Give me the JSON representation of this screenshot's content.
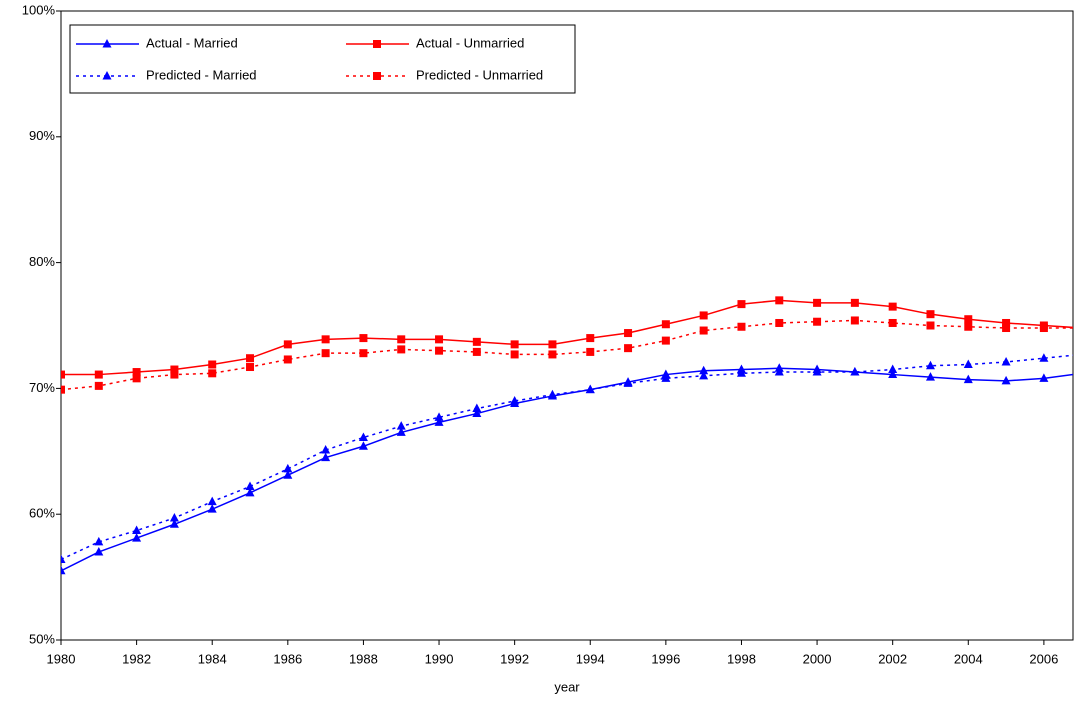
{
  "chart_data": {
    "type": "line",
    "x_label": "year",
    "x": [
      1980,
      1981,
      1982,
      1983,
      1984,
      1985,
      1986,
      1987,
      1988,
      1989,
      1990,
      1991,
      1992,
      1993,
      1994,
      1995,
      1996,
      1997,
      1998,
      1999,
      2000,
      2001,
      2002,
      2003,
      2004,
      2005,
      2006,
      2007
    ],
    "series": [
      {
        "name": "Actual - Married",
        "color": "#0000ff",
        "marker": "triangle",
        "dashed": false,
        "values": [
          55.5,
          57.0,
          58.1,
          59.2,
          60.4,
          61.7,
          63.1,
          64.5,
          65.4,
          66.5,
          67.3,
          68.0,
          68.8,
          69.4,
          69.9,
          70.5,
          71.1,
          71.4,
          71.5,
          71.6,
          71.5,
          71.3,
          71.1,
          70.9,
          70.7,
          70.6,
          70.8,
          71.2
        ]
      },
      {
        "name": "Actual - Unmarried",
        "color": "#ff0000",
        "marker": "square",
        "dashed": false,
        "values": [
          71.1,
          71.1,
          71.3,
          71.5,
          71.9,
          72.4,
          73.5,
          73.9,
          74.0,
          73.9,
          73.9,
          73.7,
          73.5,
          73.5,
          74.0,
          74.4,
          75.1,
          75.8,
          76.7,
          77.0,
          76.8,
          76.8,
          76.5,
          75.9,
          75.5,
          75.2,
          75.0,
          74.8
        ]
      },
      {
        "name": "Predicted - Married",
        "color": "#0000ff",
        "marker": "triangle",
        "dashed": true,
        "values": [
          56.4,
          57.8,
          58.7,
          59.7,
          61.0,
          62.2,
          63.6,
          65.1,
          66.1,
          67.0,
          67.7,
          68.4,
          69.0,
          69.5,
          69.9,
          70.4,
          70.8,
          71.0,
          71.2,
          71.3,
          71.3,
          71.3,
          71.5,
          71.8,
          71.9,
          72.1,
          72.4,
          72.7
        ]
      },
      {
        "name": "Predicted - Unmarried",
        "color": "#ff0000",
        "marker": "square",
        "dashed": true,
        "values": [
          69.9,
          70.2,
          70.8,
          71.1,
          71.2,
          71.7,
          72.3,
          72.8,
          72.8,
          73.1,
          73.0,
          72.9,
          72.7,
          72.7,
          72.9,
          73.2,
          73.8,
          74.6,
          74.9,
          75.2,
          75.3,
          75.4,
          75.2,
          75.0,
          74.9,
          74.8,
          74.8,
          74.8
        ]
      }
    ],
    "xlim": [
      1980,
      2006.77
    ],
    "xticks": [
      1980,
      1982,
      1984,
      1986,
      1988,
      1990,
      1992,
      1994,
      1996,
      1998,
      2000,
      2002,
      2004,
      2006
    ],
    "ylim": [
      50,
      100
    ],
    "yticks": [
      {
        "value": 50,
        "label": "50%"
      },
      {
        "value": 60,
        "label": "60%"
      },
      {
        "value": 70,
        "label": "70%"
      },
      {
        "value": 80,
        "label": "80%"
      },
      {
        "value": 90,
        "label": "90%"
      },
      {
        "value": 100,
        "label": "100%"
      }
    ],
    "legend": "upper left",
    "grid": false
  }
}
